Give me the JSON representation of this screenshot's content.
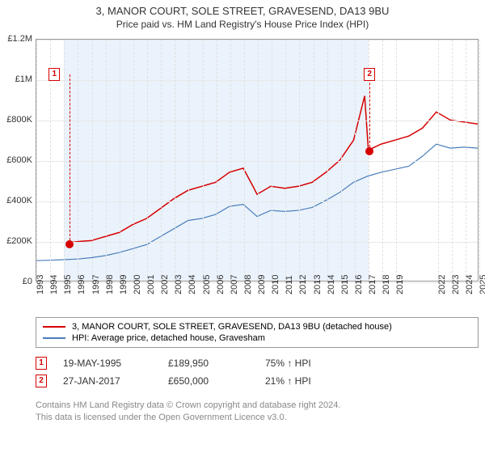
{
  "title": "3, MANOR COURT, SOLE STREET, GRAVESEND, DA13 9BU",
  "subtitle": "Price paid vs. HM Land Registry's House Price Index (HPI)",
  "chart": {
    "type": "line",
    "background_color": "#ffffff",
    "grid_color": "#e8e8e8",
    "axis_color": "#999999",
    "y_axis": {
      "min": 0,
      "max": 1200000,
      "ticks": [
        0,
        200000,
        400000,
        600000,
        800000,
        1000000,
        1200000
      ],
      "labels": [
        "£0",
        "£200K",
        "£400K",
        "£600K",
        "£800K",
        "£1M",
        "£1.2M"
      ]
    },
    "x_axis": {
      "min": 1993,
      "max": 2025,
      "ticks": [
        1993,
        1994,
        1995,
        1996,
        1997,
        1998,
        1999,
        2000,
        2001,
        2002,
        2003,
        2004,
        2005,
        2006,
        2007,
        2008,
        2009,
        2010,
        2011,
        2012,
        2013,
        2014,
        2015,
        2016,
        2017,
        2018,
        2019,
        2022,
        2023,
        2024,
        2025
      ]
    },
    "highlight_band": {
      "start": 1995,
      "end": 2017,
      "color": "#eaf2fb"
    },
    "series": [
      {
        "id": "price_paid",
        "label": "3, MANOR COURT, SOLE STREET, GRAVESEND, DA13 9BU (detached house)",
        "color": "#d60000",
        "line_width": 1.5,
        "points": [
          [
            1995.4,
            190000
          ],
          [
            1996,
            195000
          ],
          [
            1997,
            200000
          ],
          [
            1998,
            220000
          ],
          [
            1999,
            240000
          ],
          [
            2000,
            280000
          ],
          [
            2001,
            310000
          ],
          [
            2002,
            360000
          ],
          [
            2003,
            410000
          ],
          [
            2004,
            450000
          ],
          [
            2005,
            470000
          ],
          [
            2006,
            490000
          ],
          [
            2007,
            540000
          ],
          [
            2008,
            560000
          ],
          [
            2008.7,
            470000
          ],
          [
            2009,
            430000
          ],
          [
            2010,
            470000
          ],
          [
            2011,
            460000
          ],
          [
            2012,
            470000
          ],
          [
            2013,
            490000
          ],
          [
            2014,
            540000
          ],
          [
            2015,
            600000
          ],
          [
            2016,
            700000
          ],
          [
            2016.8,
            920000
          ],
          [
            2017.07,
            650000
          ],
          [
            2018,
            680000
          ],
          [
            2019,
            700000
          ],
          [
            2020,
            720000
          ],
          [
            2021,
            760000
          ],
          [
            2022,
            840000
          ],
          [
            2023,
            800000
          ],
          [
            2024,
            790000
          ],
          [
            2025,
            780000
          ]
        ]
      },
      {
        "id": "hpi",
        "label": "HPI: Average price, detached house, Gravesham",
        "color": "#4a7ebb",
        "line_width": 1.2,
        "points": [
          [
            1993,
            100000
          ],
          [
            1994,
            102000
          ],
          [
            1995,
            105000
          ],
          [
            1996,
            108000
          ],
          [
            1997,
            115000
          ],
          [
            1998,
            125000
          ],
          [
            1999,
            140000
          ],
          [
            2000,
            160000
          ],
          [
            2001,
            180000
          ],
          [
            2002,
            220000
          ],
          [
            2003,
            260000
          ],
          [
            2004,
            300000
          ],
          [
            2005,
            310000
          ],
          [
            2006,
            330000
          ],
          [
            2007,
            370000
          ],
          [
            2008,
            380000
          ],
          [
            2009,
            320000
          ],
          [
            2010,
            350000
          ],
          [
            2011,
            345000
          ],
          [
            2012,
            350000
          ],
          [
            2013,
            365000
          ],
          [
            2014,
            400000
          ],
          [
            2015,
            440000
          ],
          [
            2016,
            490000
          ],
          [
            2017,
            520000
          ],
          [
            2018,
            540000
          ],
          [
            2019,
            555000
          ],
          [
            2020,
            570000
          ],
          [
            2021,
            620000
          ],
          [
            2022,
            680000
          ],
          [
            2023,
            660000
          ],
          [
            2024,
            665000
          ],
          [
            2025,
            660000
          ]
        ]
      }
    ],
    "markers": [
      {
        "id": 1,
        "x": 1995.4,
        "y": 190000,
        "color": "#d60000",
        "label_x": 1994.3,
        "label_y": 1030000
      },
      {
        "id": 2,
        "x": 2017.07,
        "y": 650000,
        "color": "#d60000",
        "label_x": 2017.07,
        "label_y": 1030000
      }
    ]
  },
  "legend": [
    {
      "color": "#d60000",
      "label": "3, MANOR COURT, SOLE STREET, GRAVESEND, DA13 9BU (detached house)"
    },
    {
      "color": "#4a7ebb",
      "label": "HPI: Average price, detached house, Gravesham"
    }
  ],
  "transactions": [
    {
      "num": "1",
      "color": "#d60000",
      "date": "19-MAY-1995",
      "price": "£189,950",
      "pct": "75% ↑ HPI"
    },
    {
      "num": "2",
      "color": "#d60000",
      "date": "27-JAN-2017",
      "price": "£650,000",
      "pct": "21% ↑ HPI"
    }
  ],
  "footer_line1": "Contains HM Land Registry data © Crown copyright and database right 2024.",
  "footer_line2": "This data is licensed under the Open Government Licence v3.0."
}
